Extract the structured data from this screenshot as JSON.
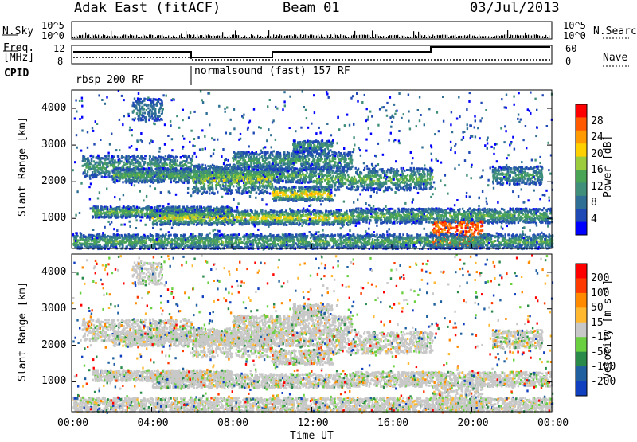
{
  "header": {
    "station": "Adak East (fitACF)",
    "beam": "Beam 01",
    "date": "03/Jul/2013"
  },
  "strips": {
    "nsky_label": "N.Sky",
    "nsky_ticks": [
      "10^5",
      "10^0"
    ],
    "nsearch_label": "N.Search",
    "nsearch_ticks": [
      "10^5",
      "10^0"
    ],
    "freq_label_line1": "Freq.",
    "freq_label_line2": "[MHz]",
    "freq_ticks": [
      "12",
      "8"
    ],
    "nave_label": "Nave",
    "nave_ticks": [
      "60",
      "0"
    ],
    "cpid_label": "CPID",
    "cpid_segments": [
      "rbsp 200 RF",
      "normalsound (fast) 157 RF"
    ]
  },
  "chart_data": [
    {
      "type": "heatmap",
      "panel": "power",
      "ylabel": "Slant Range [km]",
      "ylim": [
        180,
        4500
      ],
      "y_ticks": [
        "4000",
        "3000",
        "2000",
        "1000"
      ],
      "xlim": [
        "00:00",
        "00:00"
      ],
      "x_ticks": [
        "00:00",
        "04:00",
        "08:00",
        "12:00",
        "16:00",
        "20:00",
        "00:00"
      ],
      "colorbar": {
        "label": "Power [dB]",
        "ticks": [
          "28",
          "24",
          "20",
          "16",
          "12",
          "8",
          "4"
        ],
        "colors": [
          "#0000ff",
          "#1f49b4",
          "#2f6f96",
          "#3f8f7a",
          "#4aa455",
          "#9ccc3c",
          "#ffd000",
          "#ff9a00",
          "#ff5a00",
          "#ff0000"
        ]
      }
    },
    {
      "type": "heatmap",
      "panel": "velocity",
      "ylabel": "Slant Range [km]",
      "ylim": [
        180,
        4500
      ],
      "y_ticks": [
        "4000",
        "3000",
        "2000",
        "1000"
      ],
      "xlim": [
        "00:00",
        "00:00"
      ],
      "x_ticks": [
        "00:00",
        "04:00",
        "08:00",
        "12:00",
        "16:00",
        "20:00",
        "00:00"
      ],
      "xlabel": "Time UT",
      "colorbar": {
        "label": "Velocity [m s⁻¹]",
        "ticks": [
          "200",
          "100",
          "50",
          "15",
          "-15",
          "-50",
          "-100",
          "-200"
        ],
        "colors": [
          "#1040c0",
          "#2060a0",
          "#2a8a4a",
          "#6ad040",
          "#c8c8c8",
          "#ffb830",
          "#ff8a00",
          "#ff3a00",
          "#ff0000"
        ]
      }
    }
  ]
}
